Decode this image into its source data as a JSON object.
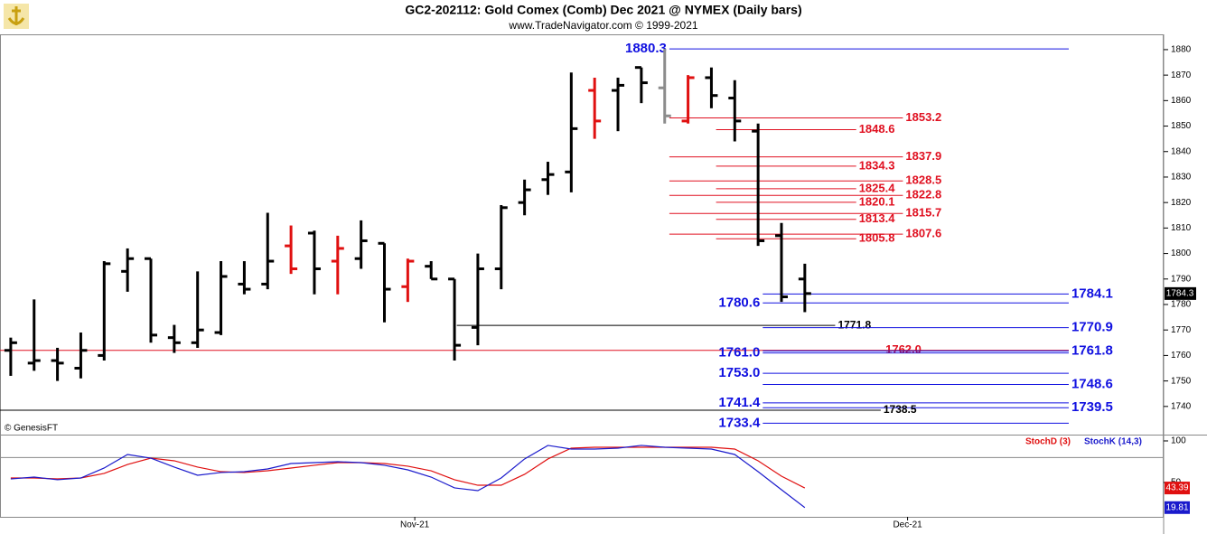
{
  "chart_data": [
    {
      "type": "ohlc",
      "title": "GC2-202112:  Gold Comex (Comb) Dec 2021 @ NYMEX  (Daily bars)",
      "subtitle": "www.TradeNavigator.com © 1999-2021",
      "source_note": "© GenesisFT",
      "open": [
        1762,
        1757,
        1758,
        1755,
        1760,
        1793,
        1798,
        1767,
        1765,
        1769,
        1788,
        1788,
        1803,
        1808,
        1797,
        1798,
        1804,
        1787,
        1795,
        1790,
        1771,
        1794,
        1820,
        1829,
        1832,
        1864,
        1864,
        1873,
        1865,
        1852,
        1869,
        1861,
        1848,
        1807,
        1790
      ],
      "high": [
        1767,
        1782,
        1763,
        1769,
        1797,
        1802,
        1798,
        1772,
        1793,
        1797,
        1797,
        1816,
        1811,
        1809,
        1807,
        1813,
        1804,
        1798,
        1797,
        1790,
        1800,
        1819,
        1829,
        1836,
        1871,
        1869,
        1869,
        1873,
        1880.3,
        1870,
        1873,
        1868,
        1851,
        1812,
        1796
      ],
      "low": [
        1752,
        1754,
        1750,
        1751,
        1758,
        1785,
        1765,
        1761,
        1763,
        1768,
        1784,
        1786,
        1792,
        1784,
        1784,
        1794,
        1773,
        1781,
        1790,
        1758,
        1764,
        1786,
        1815,
        1823,
        1824,
        1845,
        1848,
        1859,
        1851,
        1851,
        1857,
        1844,
        1803,
        1781,
        1777
      ],
      "close": [
        1765,
        1758,
        1757,
        1762,
        1796,
        1798,
        1768,
        1765,
        1770,
        1791,
        1786,
        1797,
        1794,
        1794,
        1802,
        1805,
        1786,
        1797,
        1790,
        1764,
        1794,
        1818,
        1825,
        1831,
        1849,
        1852,
        1866,
        1867,
        1854,
        1869,
        1862,
        1852,
        1805,
        1783,
        1784.3
      ],
      "colors": [
        "#000000",
        "#000000",
        "#000000",
        "#000000",
        "#000000",
        "#000000",
        "#000000",
        "#000000",
        "#000000",
        "#000000",
        "#000000",
        "#000000",
        "#e01010",
        "#000000",
        "#e01010",
        "#000000",
        "#000000",
        "#e01010",
        "#000000",
        "#000000",
        "#000000",
        "#000000",
        "#000000",
        "#000000",
        "#000000",
        "#e01010",
        "#000000",
        "#000000",
        "#8c8c8c",
        "#e01010",
        "#000000",
        "#000000",
        "#000000",
        "#000000",
        "#000000"
      ],
      "xlim": [
        -0.46,
        49.17
      ],
      "xticks": [
        {
          "value": 17.3,
          "label": "Nov-21"
        },
        {
          "value": 38.4,
          "label": "Dec-21"
        }
      ],
      "ylim": [
        1729.3,
        1886.0
      ],
      "yticks": [
        1740,
        1750,
        1760,
        1770,
        1780,
        1790,
        1800,
        1810,
        1820,
        1830,
        1840,
        1850,
        1860,
        1870,
        1880
      ],
      "levels": {
        "values": [
          1880.3,
          1853.2,
          1848.6,
          1837.9,
          1834.3,
          1828.5,
          1825.4,
          1822.8,
          1820.1,
          1815.7,
          1813.4,
          1807.6,
          1805.8,
          1784.1,
          1780.6,
          1771.8,
          1770.9,
          1762.0,
          1761.8,
          1761.0,
          1753.0,
          1748.6,
          1741.4,
          1739.5,
          1738.5,
          1733.4
        ],
        "value_labels": [
          "1880.3",
          "1853.2",
          "1848.6",
          "1837.9",
          "1834.3",
          "1828.5",
          "1825.4",
          "1822.8",
          "1820.1",
          "1815.7",
          "1813.4",
          "1807.6",
          "1805.8",
          "1784.1",
          "1780.6",
          "1771.8",
          "1770.9",
          "1762.0",
          "1761.8",
          "1761.0",
          "1753.0",
          "1748.6",
          "1741.4",
          "1739.5",
          "1738.5",
          "1733.4"
        ],
        "colors": [
          "#1010e0",
          "#e01020",
          "#e01020",
          "#e01020",
          "#e01020",
          "#e01020",
          "#e01020",
          "#e01020",
          "#e01020",
          "#e01020",
          "#e01020",
          "#e01020",
          "#e01020",
          "#1010e0",
          "#1010e0",
          "#000000",
          "#1010e0",
          "#e01020",
          "#1010e0",
          "#1010e0",
          "#1010e0",
          "#1010e0",
          "#1010e0",
          "#1010e0",
          "#000000",
          "#1010e0"
        ]
      }
    },
    {
      "type": "line",
      "ylim": [
        8.7,
        106.5
      ],
      "yticks": [
        50,
        100
      ],
      "reference_lines": [
        80
      ],
      "series": [
        {
          "name": "StochD (3)",
          "color": "#e01010",
          "values": [
            55.4,
            55.4,
            54.3,
            55.4,
            60.9,
            71.7,
            79.3,
            76.1,
            68.5,
            63.0,
            62.0,
            64.1,
            67.4,
            70.7,
            73.9,
            73.9,
            72.8,
            69.6,
            64.1,
            53.3,
            46.7,
            46.7,
            59.8,
            78.3,
            91.3,
            92.4,
            92.4,
            92.4,
            92.4,
            92.4,
            92.4,
            90.2,
            76.1,
            57.6,
            43.39
          ]
        },
        {
          "name": "StochK (14,3)",
          "color": "#1a1acc",
          "values": [
            54.3,
            56.5,
            53.3,
            55.4,
            67.4,
            83.7,
            79.3,
            68.5,
            58.7,
            62.0,
            63.0,
            66.3,
            72.8,
            73.9,
            75.0,
            73.9,
            70.7,
            65.2,
            56.5,
            43.5,
            40.2,
            55.4,
            78.3,
            94.6,
            90.2,
            90.2,
            91.3,
            94.6,
            92.4,
            91.3,
            90.2,
            83.7,
            63.0,
            41.3,
            19.81
          ]
        }
      ]
    }
  ]
}
